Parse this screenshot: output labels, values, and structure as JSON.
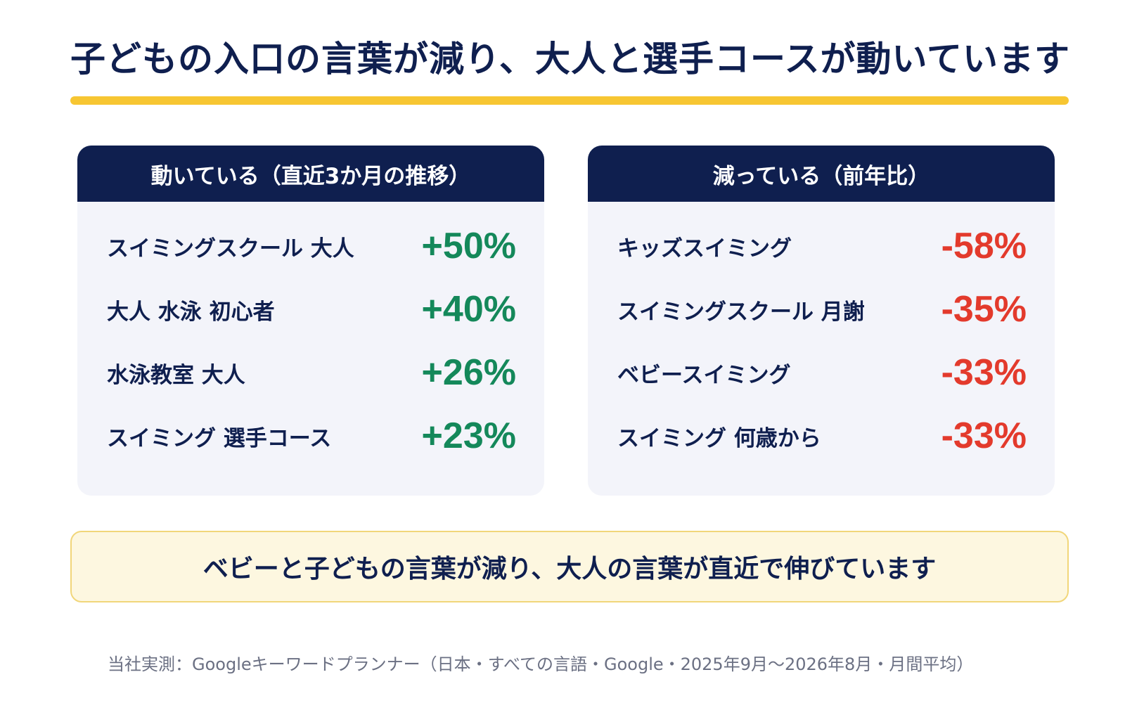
{
  "headline": "子どもの入口の言葉が減り、大人と選手コースが動いています",
  "colors": {
    "navy": "#0f1f4f",
    "accent_yellow": "#f7c632",
    "up_green": "#14885a",
    "down_red": "#e33a2c",
    "panel_bg": "#f3f4fa"
  },
  "left_panel": {
    "title": "動いている（直近3か月の推移）",
    "items": [
      {
        "term": "スイミングスクール 大人",
        "value": "+50%"
      },
      {
        "term": "大人 水泳 初心者",
        "value": "+40%"
      },
      {
        "term": "水泳教室 大人",
        "value": "+26%"
      },
      {
        "term": "スイミング 選手コース",
        "value": "+23%"
      }
    ]
  },
  "right_panel": {
    "title": "減っている（前年比）",
    "items": [
      {
        "term": "キッズスイミング",
        "value": "-58%"
      },
      {
        "term": "スイミングスクール 月謝",
        "value": "-35%"
      },
      {
        "term": "ベビースイミング",
        "value": "-33%"
      },
      {
        "term": "スイミング 何歳から",
        "value": "-33%"
      }
    ]
  },
  "callout": "ベビーと子どもの言葉が減り、大人の言葉が直近で伸びています",
  "source": "当社実測：Googleキーワードプランナー（日本・すべての言語・Google・2025年9月〜2026年8月・月間平均）"
}
